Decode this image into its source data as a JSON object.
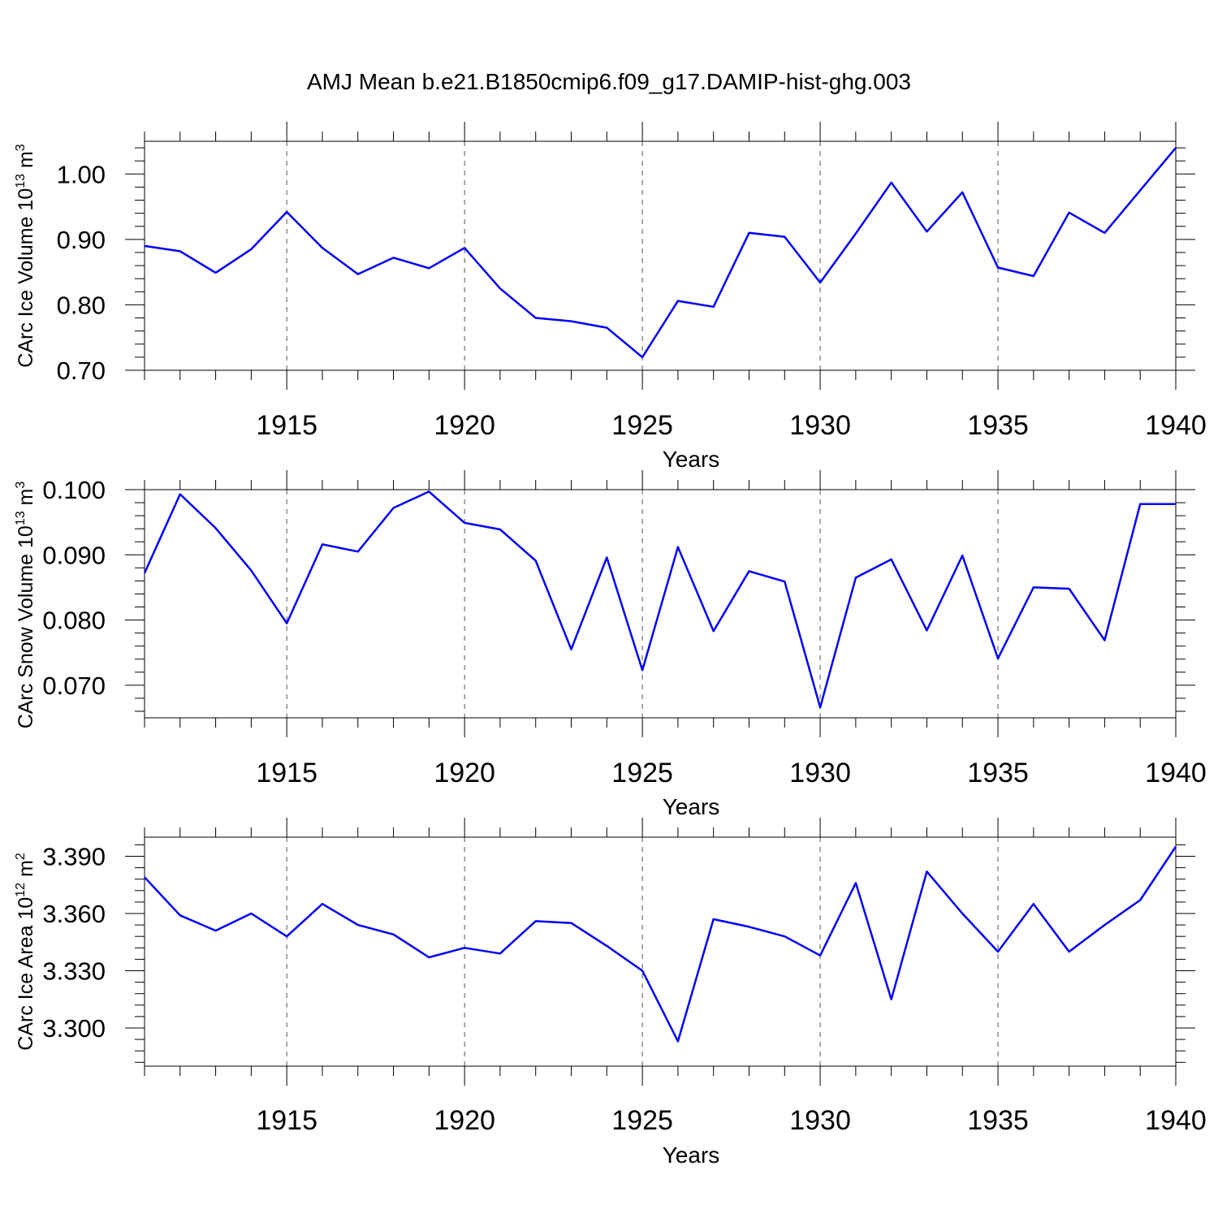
{
  "title": "AMJ Mean b.e21.B1850cmip6.f09_g17.DAMIP-hist-ghg.003",
  "line_color": "#0000ff",
  "chart_data": [
    {
      "type": "line",
      "name": "ice-volume",
      "ylabel_main": "CArc Ice Volume 10",
      "ylabel_exp": "13",
      "ylabel_unit": " m",
      "ylabel_unit_exp": "3",
      "xlabel": "Years",
      "xlim": [
        1911,
        1940
      ],
      "ylim": [
        0.7,
        1.05
      ],
      "yticks": [
        0.7,
        0.8,
        0.9,
        1.0
      ],
      "ytick_labels": [
        "0.70",
        "0.80",
        "0.90",
        "1.00"
      ],
      "xticks": [
        1915,
        1920,
        1925,
        1930,
        1935,
        1940
      ],
      "xtick_labels": [
        "1915",
        "1920",
        "1925",
        "1930",
        "1935",
        "1940"
      ],
      "x": [
        1911,
        1912,
        1913,
        1914,
        1915,
        1916,
        1917,
        1918,
        1919,
        1920,
        1921,
        1922,
        1923,
        1924,
        1925,
        1926,
        1927,
        1928,
        1929,
        1930,
        1931,
        1932,
        1933,
        1934,
        1935,
        1936,
        1937,
        1938,
        1939,
        1940
      ],
      "values": [
        0.89,
        0.882,
        0.849,
        0.885,
        0.942,
        0.887,
        0.847,
        0.872,
        0.856,
        0.887,
        0.825,
        0.78,
        0.775,
        0.765,
        0.72,
        0.806,
        0.797,
        0.91,
        0.904,
        0.834,
        0.909,
        0.987,
        0.912,
        0.972,
        0.857,
        0.844,
        0.941,
        0.91,
        0.975,
        1.04
      ]
    },
    {
      "type": "line",
      "name": "snow-volume",
      "ylabel_main": "CArc Snow Volume 10",
      "ylabel_exp": "13",
      "ylabel_unit": " m",
      "ylabel_unit_exp": "3",
      "xlabel": "Years",
      "xlim": [
        1911,
        1940
      ],
      "ylim": [
        0.065,
        0.1
      ],
      "yticks": [
        0.07,
        0.08,
        0.09,
        0.1
      ],
      "ytick_labels": [
        "0.070",
        "0.080",
        "0.090",
        "0.100"
      ],
      "xticks": [
        1915,
        1920,
        1925,
        1930,
        1935,
        1940
      ],
      "xtick_labels": [
        "1915",
        "1920",
        "1925",
        "1930",
        "1935",
        "1940"
      ],
      "x": [
        1911,
        1912,
        1913,
        1914,
        1915,
        1916,
        1917,
        1918,
        1919,
        1920,
        1921,
        1922,
        1923,
        1924,
        1925,
        1926,
        1927,
        1928,
        1929,
        1930,
        1931,
        1932,
        1933,
        1934,
        1935,
        1936,
        1937,
        1938,
        1939,
        1940
      ],
      "values": [
        0.0872,
        0.0993,
        0.0941,
        0.0876,
        0.0795,
        0.0916,
        0.0905,
        0.0972,
        0.0997,
        0.0949,
        0.0939,
        0.0891,
        0.0755,
        0.0896,
        0.0723,
        0.0912,
        0.0783,
        0.0875,
        0.0859,
        0.0666,
        0.0865,
        0.0893,
        0.0784,
        0.0899,
        0.0741,
        0.085,
        0.0848,
        0.0769,
        0.0978,
        0.0978
      ]
    },
    {
      "type": "line",
      "name": "ice-area",
      "ylabel_main": "CArc Ice Area 10",
      "ylabel_exp": "12",
      "ylabel_unit": " m",
      "ylabel_unit_exp": "2",
      "xlabel": "Years",
      "xlim": [
        1911,
        1940
      ],
      "ylim": [
        3.28,
        3.4
      ],
      "yticks": [
        3.3,
        3.33,
        3.36,
        3.39
      ],
      "ytick_labels": [
        "3.300",
        "3.330",
        "3.360",
        "3.390"
      ],
      "xticks": [
        1915,
        1920,
        1925,
        1930,
        1935,
        1940
      ],
      "xtick_labels": [
        "1915",
        "1920",
        "1925",
        "1930",
        "1935",
        "1940"
      ],
      "x": [
        1911,
        1912,
        1913,
        1914,
        1915,
        1916,
        1917,
        1918,
        1919,
        1920,
        1921,
        1922,
        1923,
        1924,
        1925,
        1926,
        1927,
        1928,
        1929,
        1930,
        1931,
        1932,
        1933,
        1934,
        1935,
        1936,
        1937,
        1938,
        1939,
        1940
      ],
      "values": [
        3.379,
        3.359,
        3.351,
        3.36,
        3.348,
        3.365,
        3.354,
        3.349,
        3.337,
        3.342,
        3.339,
        3.356,
        3.355,
        3.343,
        3.33,
        3.293,
        3.357,
        3.353,
        3.348,
        3.338,
        3.376,
        3.315,
        3.382,
        3.36,
        3.34,
        3.365,
        3.34,
        3.354,
        3.367,
        3.395
      ]
    }
  ]
}
